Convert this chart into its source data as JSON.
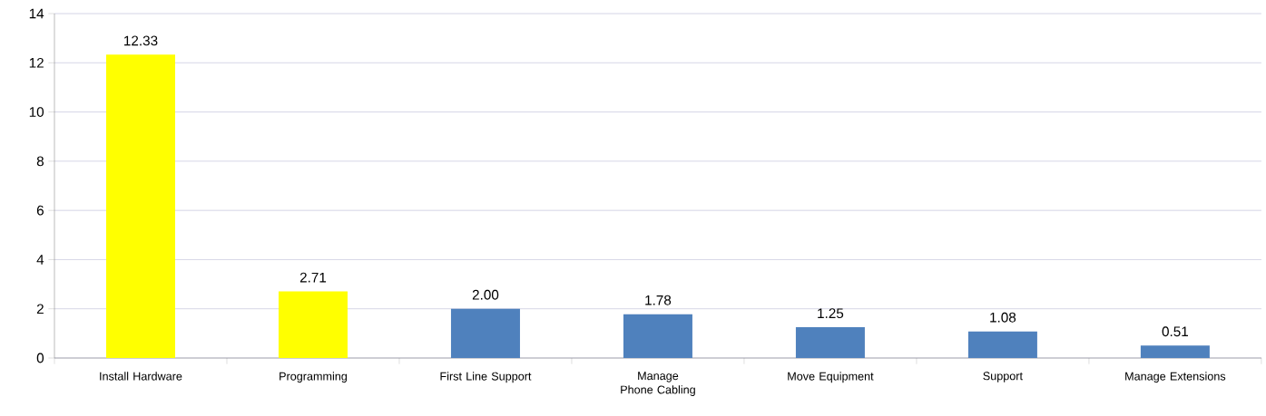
{
  "chart_data": {
    "type": "bar",
    "categories": [
      "Install Hardware",
      "Programming",
      "First Line Support",
      "Manage Phone Cabling",
      "Move Equipment",
      "Support",
      "Manage Extensions"
    ],
    "values": [
      12.33,
      2.71,
      2.0,
      1.78,
      1.25,
      1.08,
      0.51
    ],
    "value_labels": [
      "12.33",
      "2.71",
      "2.00",
      "1.78",
      "1.25",
      "1.08",
      "0.51"
    ],
    "colors": [
      "#ffff00",
      "#ffff00",
      "#4f81bd",
      "#4f81bd",
      "#4f81bd",
      "#4f81bd",
      "#4f81bd"
    ],
    "ylim": [
      0,
      14
    ],
    "yticks": [
      0,
      2,
      4,
      6,
      8,
      10,
      12,
      14
    ],
    "grid": "y"
  }
}
